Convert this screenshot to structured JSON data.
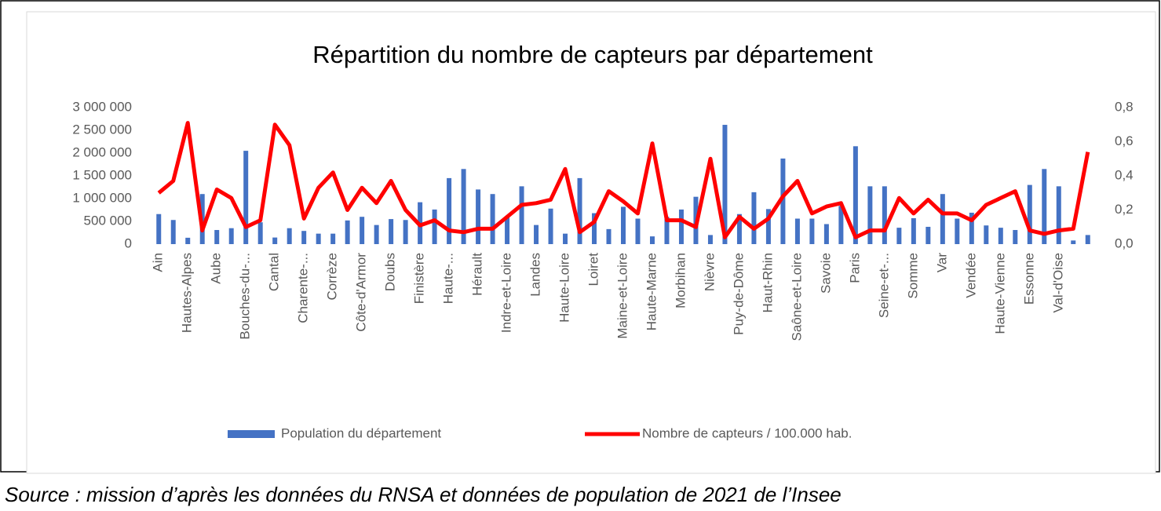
{
  "chart_data": {
    "type": "bar",
    "title": "Répartition du nombre de capteurs par département",
    "source": "Source : mission d’après les données du RNSA et données de population de 2021 de l’Insee",
    "categories": [
      "Ain",
      null,
      "Hautes-Alpes",
      null,
      "Aube",
      null,
      "Bouches-du-...",
      null,
      "Cantal",
      null,
      "Charente-...",
      null,
      "Corrèze",
      null,
      "Côte-d'Armor",
      null,
      "Doubs",
      null,
      "Finistère",
      null,
      "Haute-...",
      null,
      "Hérault",
      null,
      "Indre-et-Loire",
      null,
      "Landes",
      null,
      "Haute-Loire",
      null,
      "Loiret",
      null,
      "Maine-et-Loire",
      null,
      "Haute-Marne",
      null,
      "Morbihan",
      null,
      "Nièvre",
      null,
      "Puy-de-Dôme",
      null,
      "Haut-Rhin",
      null,
      "Saône-et-Loire",
      null,
      "Savoie",
      null,
      "Paris",
      null,
      "Seine-et-...",
      null,
      "Somme",
      null,
      "Var",
      null,
      "Vendée",
      null,
      "Haute-Vienne",
      null,
      "Essonne",
      null,
      "Val-d'Oise",
      null,
      null
    ],
    "series": [
      {
        "name": "Population du département",
        "type": "bar",
        "color": "#4472c4",
        "values": [
          660000,
          530000,
          140000,
          1100000,
          310000,
          350000,
          2050000,
          480000,
          145000,
          350000,
          290000,
          230000,
          230000,
          520000,
          600000,
          420000,
          550000,
          530000,
          920000,
          760000,
          1450000,
          1650000,
          1200000,
          1100000,
          610000,
          1270000,
          420000,
          780000,
          230000,
          1450000,
          680000,
          330000,
          820000,
          560000,
          170000,
          600000,
          760000,
          1040000,
          200000,
          2620000,
          660000,
          1140000,
          770000,
          1880000,
          560000,
          560000,
          440000,
          840000,
          2150000,
          1270000,
          1270000,
          360000,
          570000,
          380000,
          1100000,
          560000,
          690000,
          410000,
          360000,
          310000,
          1300000,
          1650000,
          1270000,
          80000,
          200000
        ]
      },
      {
        "name": "Nombre de capteurs / 100.000 hab.",
        "type": "line",
        "color": "#ff0000",
        "axis": "y2",
        "values": [
          0.3,
          0.37,
          0.71,
          0.08,
          0.32,
          0.27,
          0.1,
          0.14,
          0.7,
          0.58,
          0.15,
          0.33,
          0.42,
          0.2,
          0.33,
          0.24,
          0.37,
          0.2,
          0.11,
          0.14,
          0.08,
          0.07,
          0.09,
          0.09,
          0.16,
          0.23,
          0.24,
          0.26,
          0.44,
          0.07,
          0.13,
          0.31,
          0.25,
          0.18,
          0.59,
          0.14,
          0.14,
          0.1,
          0.5,
          0.04,
          0.16,
          0.09,
          0.15,
          0.28,
          0.37,
          0.18,
          0.22,
          0.24,
          0.04,
          0.08,
          0.08,
          0.27,
          0.18,
          0.26,
          0.18,
          0.18,
          0.14,
          0.23,
          0.27,
          0.31,
          0.08,
          0.06,
          0.08,
          0.09,
          0.54
        ]
      }
    ],
    "ylim": [
      0,
      3000000
    ],
    "yticks": [
      0,
      {
        "value": 500000,
        "label": "500 000"
      },
      {
        "value": 1000000,
        "label": "1 000 000"
      },
      {
        "value": 1500000,
        "label": "1 500 000"
      },
      {
        "value": 2000000,
        "label": "2 000 000"
      },
      {
        "value": 2500000,
        "label": "2 500 000"
      },
      {
        "value": 3000000,
        "label": "3 000 000"
      }
    ],
    "y2lim": [
      0,
      0.8
    ],
    "y2ticks": [
      {
        "value": 0,
        "label": "0,0"
      },
      {
        "value": 0.2,
        "label": "0,2"
      },
      {
        "value": 0.4,
        "label": "0,4"
      },
      {
        "value": 0.6,
        "label": "0,6"
      },
      {
        "value": 0.8,
        "label": "0,8"
      }
    ],
    "legend": "bottom"
  }
}
